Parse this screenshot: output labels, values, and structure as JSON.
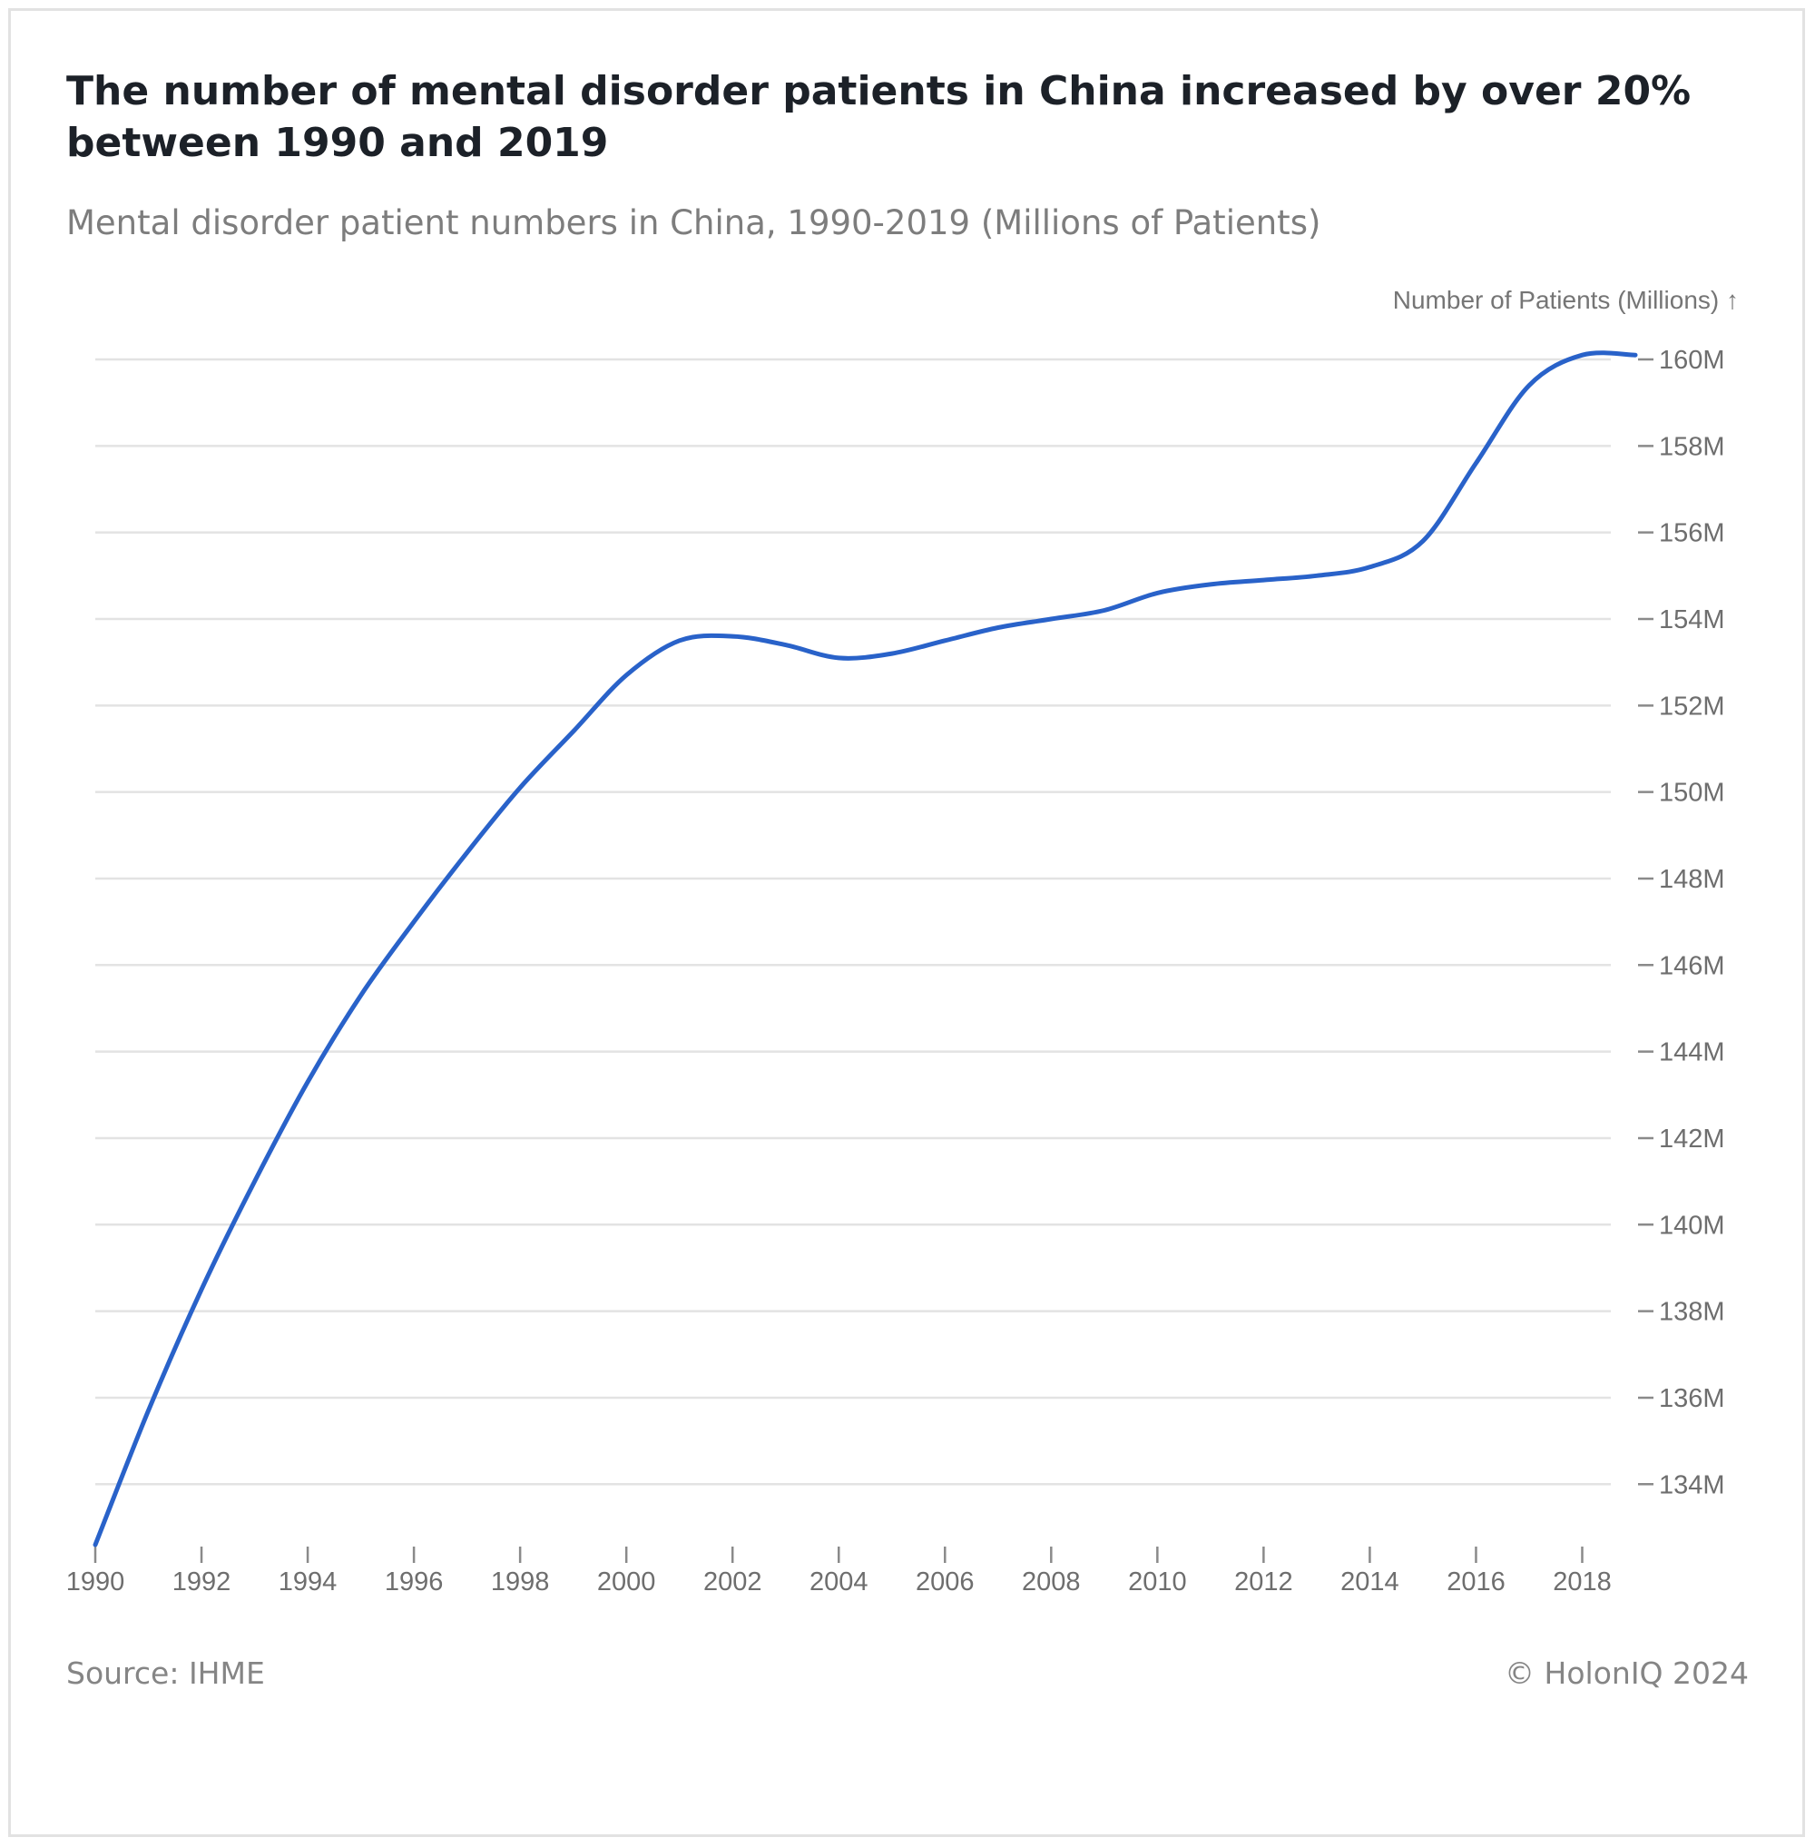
{
  "chart_data": {
    "type": "line",
    "title": "The number of mental disorder patients in China increased by over 20% between 1990 and 2019",
    "subtitle": "Mental disorder patient numbers in China, 1990-2019 (Millions of Patients)",
    "ylabel": "Number of Patients (Millions) ↑",
    "xlabel": "",
    "x": [
      1990,
      1991,
      1992,
      1993,
      1994,
      1995,
      1996,
      1997,
      1998,
      1999,
      2000,
      2001,
      2002,
      2003,
      2004,
      2005,
      2006,
      2007,
      2008,
      2009,
      2010,
      2011,
      2012,
      2013,
      2014,
      2015,
      2016,
      2017,
      2018,
      2019
    ],
    "series": [
      {
        "values": [
          132.6,
          135.7,
          138.5,
          141.0,
          143.3,
          145.3,
          147.0,
          148.6,
          150.1,
          151.4,
          152.7,
          153.5,
          153.6,
          153.4,
          153.1,
          153.2,
          153.5,
          153.8,
          154.0,
          154.2,
          154.6,
          154.8,
          154.9,
          155.0,
          155.2,
          155.8,
          157.6,
          159.4,
          160.1,
          160.1
        ],
        "color": "#2962c9"
      }
    ],
    "xticks": [
      1990,
      1992,
      1994,
      1996,
      1998,
      2000,
      2002,
      2004,
      2006,
      2008,
      2010,
      2012,
      2014,
      2016,
      2018
    ],
    "xtick_labels": [
      "1990",
      "1992",
      "1994",
      "1996",
      "1998",
      "2000",
      "2002",
      "2004",
      "2006",
      "2008",
      "2010",
      "2012",
      "2014",
      "2016",
      "2018"
    ],
    "yticks": [
      134,
      136,
      138,
      140,
      142,
      144,
      146,
      148,
      150,
      152,
      154,
      156,
      158,
      160
    ],
    "ytick_labels": [
      "134M",
      "136M",
      "138M",
      "140M",
      "142M",
      "144M",
      "146M",
      "148M",
      "150M",
      "152M",
      "154M",
      "156M",
      "158M",
      "160M"
    ],
    "xlim": [
      1990,
      2019
    ],
    "ylim": [
      132.6,
      160
    ],
    "grid": true,
    "y_axis_side": "right",
    "legend": "none"
  },
  "footer": {
    "source": "Source: IHME",
    "copyright": "© HolonIQ 2024"
  }
}
